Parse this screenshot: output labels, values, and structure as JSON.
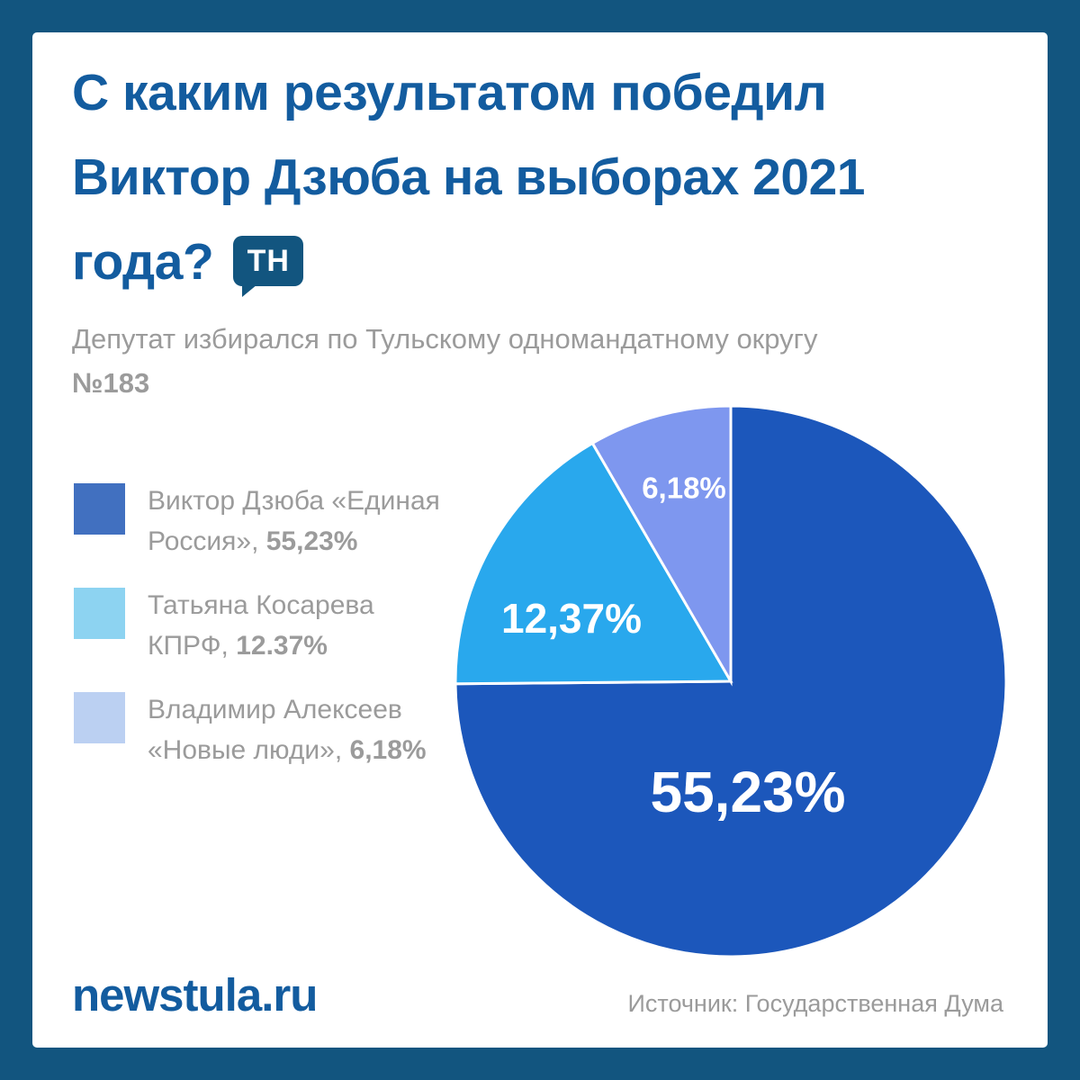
{
  "page": {
    "border_color": "#12557F",
    "background": "#FFFFFF",
    "title_color": "#135C9F",
    "muted_text_color": "#9B9B9B"
  },
  "header": {
    "title": "С каким результатом победил Виктор Дзюба на выборах 2021 года?",
    "title_lines": [
      "С каким результатом победил",
      "Виктор Дзюба на выборах 2021",
      "года?"
    ],
    "badge": "ТН",
    "subtitle": "Депутат избирался по Тульскому одномандатному округу",
    "subtitle_number": "№183"
  },
  "legend": {
    "items": [
      {
        "name": "Виктор Дзюба «Единая Россия», ",
        "value": "55,23%",
        "color": "#4170C0"
      },
      {
        "name": "Татьяна Косарева КПРФ, ",
        "value": "12.37%",
        "color": "#8DD3F1"
      },
      {
        "name": "Владимир Алексеев «Новые люди», ",
        "value": "6,18%",
        "color": "#BBD0F2"
      }
    ]
  },
  "chart_data": {
    "type": "pie",
    "title": "С каким результатом победил Виктор Дзюба на выборах 2021 года?",
    "legend_position": "left",
    "labels_inside": true,
    "start_angle_deg": 0,
    "direction": "clockwise",
    "normalized_to_full_circle": true,
    "slices": [
      {
        "label": "Виктор Дзюба «Единая Россия»",
        "value": 55.23,
        "display": "55,23%",
        "color": "#1C57BB"
      },
      {
        "label": "Татьяна Косарева КПРФ",
        "value": 12.37,
        "display": "12,37%",
        "color": "#29A8ED"
      },
      {
        "label": "Владимир Алексеев «Новые люди»",
        "value": 6.18,
        "display": "6,18%",
        "color": "#7E97EF"
      }
    ]
  },
  "footer": {
    "brand": "newstula.ru",
    "source": "Источник: Государственная Дума"
  }
}
